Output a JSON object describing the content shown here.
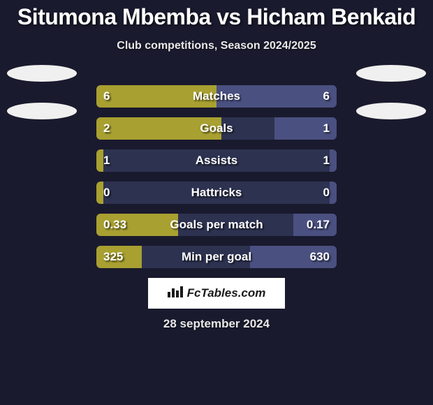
{
  "title": "Situmona Mbemba vs Hicham Benkaid",
  "subtitle": "Club competitions, Season 2024/2025",
  "date": "28 september 2024",
  "logo_text": "FcTables.com",
  "colors": {
    "background": "#1a1a2e",
    "bar_bg": "#2d3250",
    "player1": "#a8a030",
    "player2": "#4a5080",
    "text": "#ffffff",
    "avatar": "#f0f0f0"
  },
  "stats": [
    {
      "label": "Matches",
      "val1": "6",
      "val2": "6",
      "pct1": 50,
      "pct2": 50
    },
    {
      "label": "Goals",
      "val1": "2",
      "val2": "1",
      "pct1": 52,
      "pct2": 26
    },
    {
      "label": "Assists",
      "val1": "1",
      "val2": "1",
      "pct1": 3,
      "pct2": 3
    },
    {
      "label": "Hattricks",
      "val1": "0",
      "val2": "0",
      "pct1": 3,
      "pct2": 3
    },
    {
      "label": "Goals per match",
      "val1": "0.33",
      "val2": "0.17",
      "pct1": 34,
      "pct2": 18
    },
    {
      "label": "Min per goal",
      "val1": "325",
      "val2": "630",
      "pct1": 19,
      "pct2": 36
    }
  ]
}
